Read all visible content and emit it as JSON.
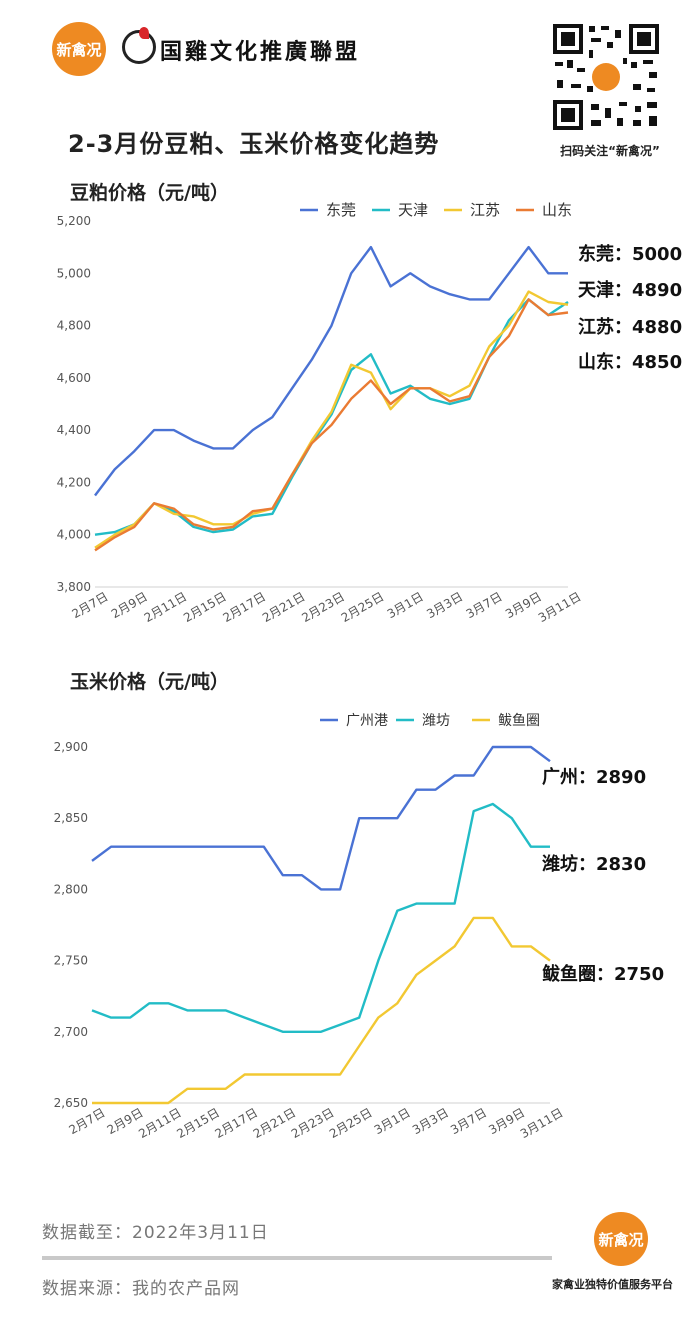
{
  "header": {
    "logo_text": "新禽况",
    "org_name": "国雞文化推廣聯盟",
    "qr_caption": "扫码关注“新禽况”"
  },
  "main_title": "2-3月份豆粕、玉米价格变化趋势",
  "footer": {
    "date_label": "数据截至：2022年3月11日",
    "source_label": "数据来源：我的农产品网",
    "logo_text": "新禽况",
    "slogan": "家禽业独特价值服务平台"
  },
  "chart_data": [
    {
      "type": "line",
      "title": "豆粕价格（元/吨）",
      "xlabel": "",
      "ylabel": "",
      "ylim": [
        3800,
        5200
      ],
      "yticks": [
        "3,800",
        "4,000",
        "4,200",
        "4,400",
        "4,600",
        "4,800",
        "5,000",
        "5,200"
      ],
      "categories": [
        "2月7日",
        "2月8日",
        "2月9日",
        "2月10日",
        "2月11日",
        "2月14日",
        "2月15日",
        "2月16日",
        "2月17日",
        "2月18日",
        "2月21日",
        "2月22日",
        "2月23日",
        "2月24日",
        "2月25日",
        "2月28日",
        "3月1日",
        "3月2日",
        "3月3日",
        "3月4日",
        "3月7日",
        "3月8日",
        "3月9日",
        "3月10日",
        "3月11日"
      ],
      "tick_labels": [
        "2月7日",
        "2月9日",
        "2月11日",
        "2月15日",
        "2月17日",
        "2月21日",
        "2月23日",
        "2月25日",
        "3月1日",
        "3月3日",
        "3月7日",
        "3月9日",
        "3月11日"
      ],
      "legend_position": "top",
      "grid": false,
      "series": [
        {
          "name": "东莞",
          "color": "#4a72d4",
          "values": [
            4150,
            4250,
            4320,
            4400,
            4400,
            4360,
            4330,
            4330,
            4400,
            4450,
            4560,
            4670,
            4800,
            5000,
            5100,
            4950,
            5000,
            4950,
            4920,
            4900,
            4900,
            5000,
            5100,
            5000,
            5000
          ]
        },
        {
          "name": "天津",
          "color": "#22bcc6",
          "values": [
            4000,
            4010,
            4040,
            4120,
            4090,
            4030,
            4010,
            4020,
            4070,
            4080,
            4220,
            4350,
            4460,
            4630,
            4690,
            4540,
            4570,
            4520,
            4500,
            4520,
            4680,
            4820,
            4900,
            4840,
            4890
          ]
        },
        {
          "name": "江苏",
          "color": "#f2c832",
          "values": [
            3950,
            4000,
            4040,
            4120,
            4080,
            4070,
            4040,
            4040,
            4080,
            4100,
            4230,
            4360,
            4470,
            4650,
            4620,
            4480,
            4560,
            4560,
            4530,
            4570,
            4720,
            4800,
            4930,
            4890,
            4880
          ]
        },
        {
          "name": "山东",
          "color": "#ea7b33",
          "values": [
            3940,
            3990,
            4030,
            4120,
            4100,
            4040,
            4020,
            4030,
            4090,
            4100,
            4230,
            4350,
            4420,
            4520,
            4590,
            4500,
            4560,
            4560,
            4510,
            4530,
            4680,
            4760,
            4900,
            4840,
            4850
          ]
        }
      ],
      "annotations": [
        "东莞：5000",
        "天津：4890",
        "江苏：4880",
        "山东：4850"
      ]
    },
    {
      "type": "line",
      "title": "玉米价格（元/吨）",
      "xlabel": "",
      "ylabel": "",
      "ylim": [
        2650,
        2900
      ],
      "yticks": [
        "2,650",
        "2,700",
        "2,750",
        "2,800",
        "2,850",
        "2,900"
      ],
      "categories": [
        "2月7日",
        "2月8日",
        "2月9日",
        "2月10日",
        "2月11日",
        "2月14日",
        "2月15日",
        "2月16日",
        "2月17日",
        "2月18日",
        "2月21日",
        "2月22日",
        "2月23日",
        "2月24日",
        "2月25日",
        "2月28日",
        "3月1日",
        "3月2日",
        "3月3日",
        "3月4日",
        "3月7日",
        "3月8日",
        "3月9日",
        "3月10日",
        "3月11日"
      ],
      "tick_labels": [
        "2月7日",
        "2月9日",
        "2月11日",
        "2月15日",
        "2月17日",
        "2月21日",
        "2月23日",
        "2月25日",
        "3月1日",
        "3月3日",
        "3月7日",
        "3月9日",
        "3月11日"
      ],
      "legend_position": "top",
      "grid": false,
      "series": [
        {
          "name": "广州港",
          "color": "#4a72d4",
          "values": [
            2820,
            2830,
            2830,
            2830,
            2830,
            2830,
            2830,
            2830,
            2830,
            2830,
            2810,
            2810,
            2800,
            2800,
            2850,
            2850,
            2850,
            2870,
            2870,
            2880,
            2880,
            2900,
            2900,
            2900,
            2890
          ]
        },
        {
          "name": "潍坊",
          "color": "#22bcc6",
          "values": [
            2715,
            2710,
            2710,
            2720,
            2720,
            2715,
            2715,
            2715,
            2710,
            2705,
            2700,
            2700,
            2700,
            2705,
            2710,
            2750,
            2785,
            2790,
            2790,
            2790,
            2855,
            2860,
            2850,
            2830,
            2830
          ]
        },
        {
          "name": "鲅鱼圈",
          "color": "#f2c832",
          "values": [
            2650,
            2650,
            2650,
            2650,
            2650,
            2660,
            2660,
            2660,
            2670,
            2670,
            2670,
            2670,
            2670,
            2670,
            2690,
            2710,
            2720,
            2740,
            2750,
            2760,
            2780,
            2780,
            2760,
            2760,
            2750
          ]
        }
      ],
      "annotations": [
        "广州：2890",
        "潍坊：2830",
        "鲅鱼圈：2750"
      ]
    }
  ]
}
